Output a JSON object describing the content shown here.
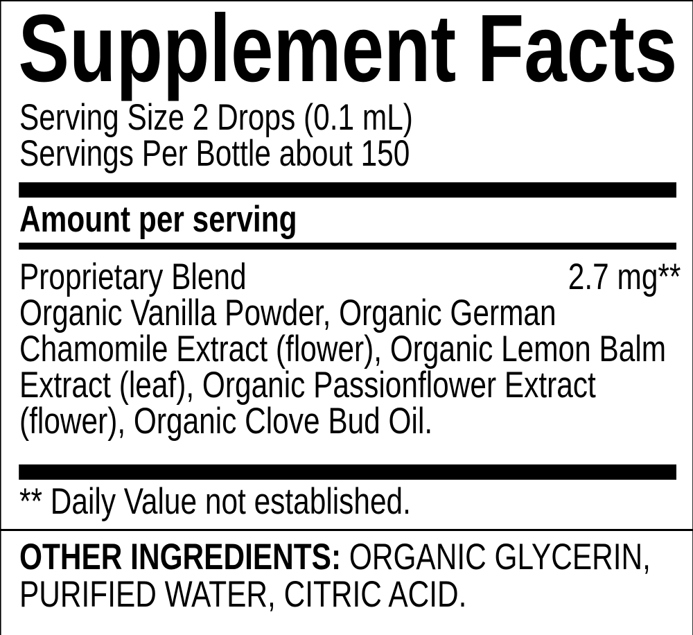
{
  "title": "Supplement Facts",
  "serving_size": "Serving Size 2 Drops (0.1 mL)",
  "servings_per_container": "Servings Per Bottle about 150",
  "amount_header": "Amount per serving",
  "blend": {
    "name": "Proprietary Blend",
    "amount": "2.7 mg**",
    "ingredient_lines": [
      "Organic Vanilla Powder, Organic German",
      "Chamomile Extract (flower), Organic Lemon Balm",
      "Extract (leaf), Organic Passionflower Extract",
      "(flower), Organic Clove Bud Oil."
    ]
  },
  "footnote": "** Daily Value not established.",
  "other_ingredients": {
    "label": "OTHER INGREDIENTS:",
    "line1": " ORGANIC GLYCERIN,",
    "line2": "PURIFIED WATER, CITRIC ACID."
  }
}
